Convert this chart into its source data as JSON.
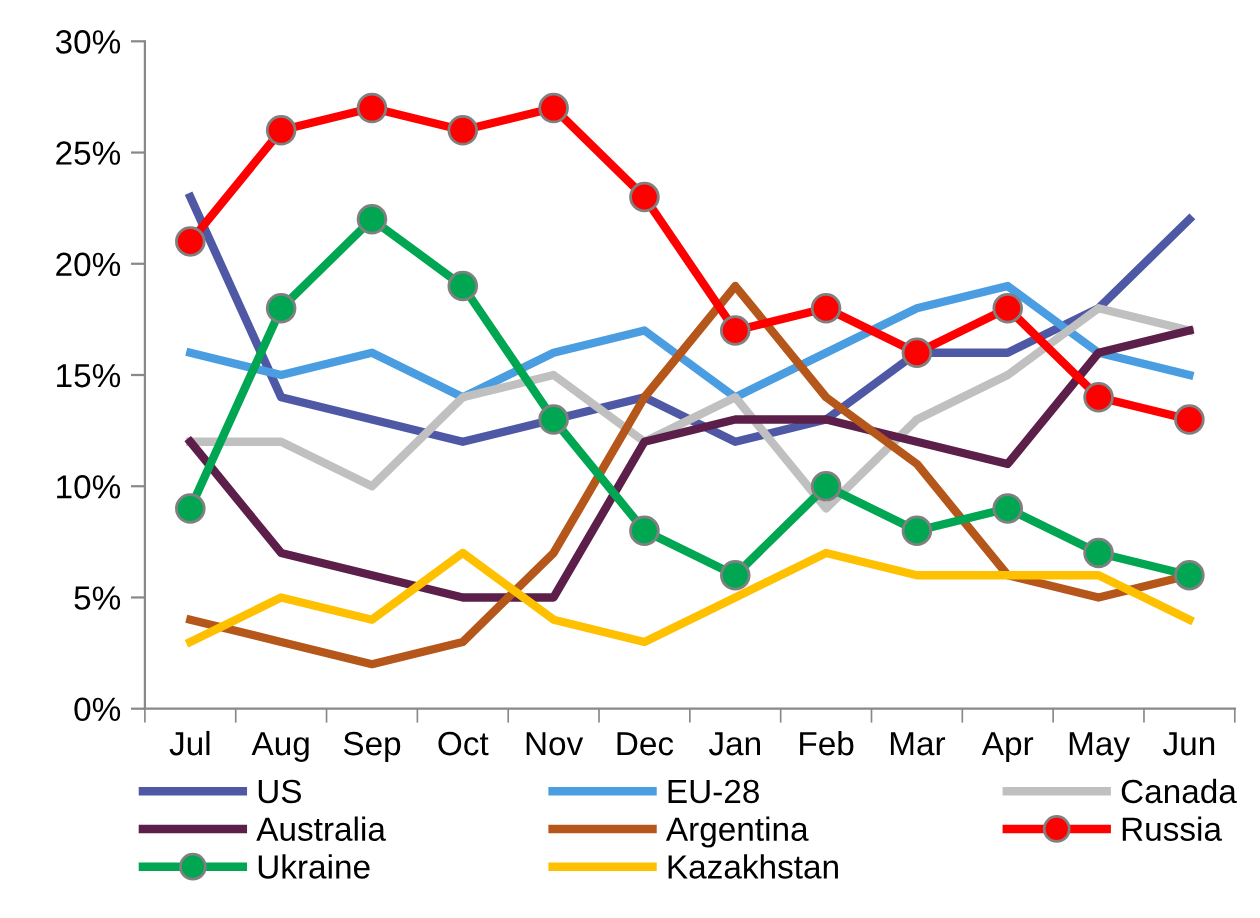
{
  "chart_data": {
    "type": "line",
    "categories": [
      "Jul",
      "Aug",
      "Sep",
      "Oct",
      "Nov",
      "Dec",
      "Jan",
      "Feb",
      "Mar",
      "Apr",
      "May",
      "Jun"
    ],
    "series": [
      {
        "name": "US",
        "color": "#4e58a5",
        "marker": "none",
        "values": [
          23,
          14,
          13,
          12,
          13,
          14,
          12,
          13,
          16,
          16,
          18,
          22
        ]
      },
      {
        "name": "EU-28",
        "color": "#4a9de0",
        "marker": "none",
        "values": [
          16,
          15,
          16,
          14,
          16,
          17,
          14,
          16,
          18,
          19,
          16,
          15
        ]
      },
      {
        "name": "Canada",
        "color": "#c0c0c0",
        "marker": "none",
        "values": [
          12,
          12,
          10,
          14,
          15,
          12,
          14,
          9,
          13,
          15,
          18,
          17
        ]
      },
      {
        "name": "Australia",
        "color": "#5c1f4a",
        "marker": "none",
        "values": [
          12,
          7,
          6,
          5,
          5,
          12,
          13,
          13,
          12,
          11,
          16,
          17
        ]
      },
      {
        "name": "Argentina",
        "color": "#b5571a",
        "marker": "none",
        "values": [
          4,
          3,
          2,
          3,
          7,
          14,
          19,
          14,
          11,
          6,
          5,
          6
        ]
      },
      {
        "name": "Russia",
        "color": "#ff0000",
        "marker": "circle",
        "values": [
          21,
          26,
          27,
          26,
          27,
          23,
          17,
          18,
          16,
          18,
          14,
          13
        ]
      },
      {
        "name": "Ukraine",
        "color": "#00a651",
        "marker": "circle",
        "values": [
          9,
          18,
          22,
          19,
          13,
          8,
          6,
          10,
          8,
          9,
          7,
          6
        ]
      },
      {
        "name": "Kazakhstan",
        "color": "#ffc000",
        "marker": "none",
        "values": [
          3,
          5,
          4,
          7,
          4,
          3,
          5,
          7,
          6,
          6,
          6,
          4
        ]
      }
    ],
    "ylim": [
      0,
      30
    ],
    "yticks": [
      {
        "value": 0,
        "label": "0%"
      },
      {
        "value": 5,
        "label": "5%"
      },
      {
        "value": 10,
        "label": "10%"
      },
      {
        "value": 15,
        "label": "15%"
      },
      {
        "value": 20,
        "label": "20%"
      },
      {
        "value": 25,
        "label": "25%"
      },
      {
        "value": 30,
        "label": "30%"
      }
    ],
    "grid": false,
    "legend": "bottom",
    "line_style": "solid"
  }
}
